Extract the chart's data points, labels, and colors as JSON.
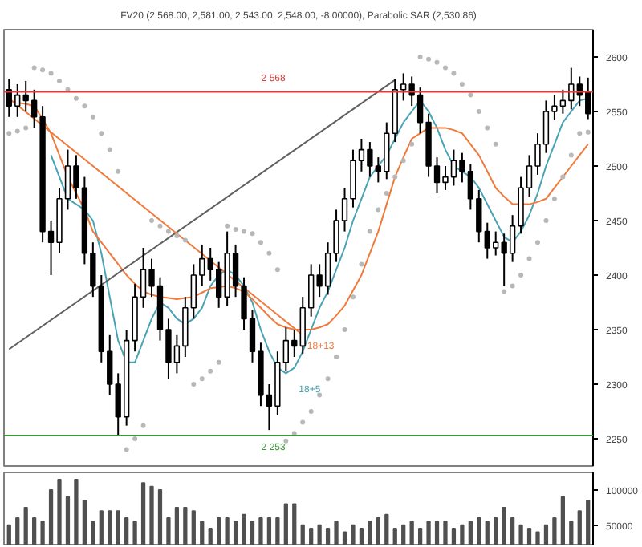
{
  "chart_data": [
    {
      "type": "candlestick",
      "title": "FV20 (2,568.00, 2,581.00, 2,543.00, 2,548.00, -8.00000), Parabolic SAR (2,530.86)",
      "categories": [
        null,
        null,
        null,
        null,
        null,
        null,
        null,
        null,
        null,
        null,
        null,
        null,
        null,
        null,
        null,
        null,
        null,
        null,
        null,
        null,
        null,
        null,
        null,
        null,
        null,
        null,
        null,
        null,
        null,
        null,
        null,
        null,
        null,
        null,
        null,
        null,
        null,
        null,
        null,
        null,
        null,
        null,
        null,
        null,
        null,
        null,
        null,
        null,
        null,
        null,
        null,
        null,
        null,
        null,
        null,
        null,
        null,
        null,
        null,
        null,
        null,
        null,
        null,
        null,
        null,
        null,
        null,
        null,
        null,
        null
      ],
      "ohlc": [
        [
          2570,
          2580,
          2545,
          2555
        ],
        [
          2555,
          2575,
          2545,
          2565
        ],
        [
          2565,
          2578,
          2550,
          2560
        ],
        [
          2560,
          2570,
          2535,
          2545
        ],
        [
          2545,
          2555,
          2430,
          2440
        ],
        [
          2440,
          2450,
          2400,
          2430
        ],
        [
          2430,
          2480,
          2420,
          2470
        ],
        [
          2470,
          2515,
          2460,
          2500
        ],
        [
          2500,
          2510,
          2470,
          2480
        ],
        [
          2480,
          2490,
          2410,
          2420
        ],
        [
          2420,
          2430,
          2380,
          2390
        ],
        [
          2390,
          2400,
          2320,
          2330
        ],
        [
          2330,
          2345,
          2290,
          2300
        ],
        [
          2300,
          2310,
          2253,
          2270
        ],
        [
          2270,
          2350,
          2262,
          2340
        ],
        [
          2340,
          2392,
          2330,
          2380
        ],
        [
          2380,
          2425,
          2370,
          2405
        ],
        [
          2405,
          2415,
          2380,
          2390
        ],
        [
          2390,
          2398,
          2340,
          2350
        ],
        [
          2350,
          2360,
          2305,
          2320
        ],
        [
          2320,
          2345,
          2310,
          2335
        ],
        [
          2335,
          2380,
          2325,
          2370
        ],
        [
          2370,
          2410,
          2360,
          2400
        ],
        [
          2400,
          2428,
          2390,
          2415
        ],
        [
          2415,
          2425,
          2395,
          2405
        ],
        [
          2405,
          2412,
          2370,
          2380
        ],
        [
          2380,
          2440,
          2372,
          2420
        ],
        [
          2420,
          2428,
          2380,
          2390
        ],
        [
          2390,
          2398,
          2350,
          2360
        ],
        [
          2360,
          2368,
          2320,
          2330
        ],
        [
          2330,
          2338,
          2280,
          2290
        ],
        [
          2290,
          2300,
          2258,
          2280
        ],
        [
          2280,
          2330,
          2272,
          2320
        ],
        [
          2320,
          2352,
          2312,
          2340
        ],
        [
          2340,
          2350,
          2325,
          2335
        ],
        [
          2335,
          2380,
          2328,
          2370
        ],
        [
          2370,
          2410,
          2362,
          2400
        ],
        [
          2400,
          2410,
          2380,
          2390
        ],
        [
          2390,
          2430,
          2382,
          2420
        ],
        [
          2420,
          2460,
          2412,
          2450
        ],
        [
          2450,
          2480,
          2440,
          2470
        ],
        [
          2470,
          2515,
          2462,
          2505
        ],
        [
          2505,
          2525,
          2495,
          2515
        ],
        [
          2515,
          2522,
          2490,
          2500
        ],
        [
          2500,
          2508,
          2485,
          2495
        ],
        [
          2495,
          2540,
          2488,
          2530
        ],
        [
          2530,
          2580,
          2522,
          2570
        ],
        [
          2570,
          2585,
          2560,
          2575
        ],
        [
          2575,
          2582,
          2555,
          2565
        ],
        [
          2565,
          2572,
          2530,
          2540
        ],
        [
          2540,
          2548,
          2490,
          2500
        ],
        [
          2500,
          2508,
          2475,
          2485
        ],
        [
          2485,
          2500,
          2478,
          2490
        ],
        [
          2490,
          2515,
          2482,
          2505
        ],
        [
          2505,
          2512,
          2485,
          2495
        ],
        [
          2495,
          2502,
          2460,
          2470
        ],
        [
          2470,
          2478,
          2430,
          2440
        ],
        [
          2440,
          2448,
          2415,
          2425
        ],
        [
          2425,
          2440,
          2418,
          2430
        ],
        [
          2430,
          2438,
          2390,
          2420
        ],
        [
          2420,
          2455,
          2412,
          2445
        ],
        [
          2445,
          2490,
          2438,
          2480
        ],
        [
          2480,
          2510,
          2472,
          2500
        ],
        [
          2500,
          2530,
          2492,
          2520
        ],
        [
          2520,
          2560,
          2512,
          2550
        ],
        [
          2550,
          2565,
          2542,
          2555
        ],
        [
          2555,
          2570,
          2548,
          2560
        ],
        [
          2560,
          2590,
          2552,
          2575
        ],
        [
          2575,
          2582,
          2555,
          2565
        ],
        [
          2568,
          2581,
          2543,
          2548
        ]
      ],
      "series": [
        {
          "type": "line",
          "name": "18+5",
          "color": "#4aa3b5",
          "values": [
            null,
            null,
            null,
            null,
            null,
            2510,
            2490,
            2470,
            2465,
            2460,
            2450,
            2420,
            2380,
            2340,
            2320,
            2320,
            2340,
            2360,
            2375,
            2370,
            2360,
            2355,
            2360,
            2370,
            2390,
            2400,
            2405,
            2400,
            2390,
            2375,
            2350,
            2330,
            2315,
            2310,
            2315,
            2330,
            2350,
            2370,
            2385,
            2405,
            2425,
            2450,
            2470,
            2490,
            2500,
            2510,
            2525,
            2540,
            2550,
            2560,
            2550,
            2535,
            2515,
            2500,
            2495,
            2490,
            2480,
            2465,
            2450,
            2435,
            2430,
            2440,
            2455,
            2475,
            2500,
            2520,
            2540,
            2550,
            2560,
            2562
          ]
        },
        {
          "type": "line",
          "name": "18+13",
          "color": "#f07a3c",
          "values": [
            2560,
            2558,
            2557,
            2555,
            2543,
            2530,
            2510,
            2490,
            2475,
            2460,
            2440,
            2430,
            2420,
            2410,
            2400,
            2392,
            2385,
            2382,
            2380,
            2379,
            2378,
            2379,
            2380,
            2384,
            2388,
            2389,
            2390,
            2388,
            2385,
            2378,
            2370,
            2362,
            2355,
            2352,
            2350,
            2350,
            2350,
            2352,
            2355,
            2363,
            2372,
            2386,
            2400,
            2420,
            2440,
            2465,
            2490,
            2508,
            2525,
            2530,
            2535,
            2535,
            2535,
            2533,
            2530,
            2520,
            2510,
            2495,
            2480,
            2472,
            2465,
            2465,
            2465,
            2467,
            2470,
            2480,
            2490,
            2500,
            2510,
            2520
          ]
        },
        {
          "type": "line",
          "color": "#606060",
          "values": [
            2332,
            null,
            null,
            null,
            null,
            null,
            null,
            null,
            null,
            null,
            null,
            null,
            null,
            null,
            null,
            null,
            null,
            null,
            null,
            null,
            null,
            null,
            null,
            null,
            null,
            null,
            null,
            null,
            null,
            null,
            null,
            null,
            null,
            null,
            null,
            null,
            null,
            null,
            null,
            null,
            null,
            null,
            null,
            null,
            null,
            null,
            2579,
            null,
            null,
            null,
            null,
            null,
            null,
            null,
            null,
            null,
            null,
            null,
            null,
            null,
            null,
            null,
            null,
            null,
            null,
            null,
            null,
            null,
            null,
            null
          ]
        },
        {
          "type": "line",
          "color": "#f07a3c",
          "values": [
            2562,
            null,
            null,
            null,
            null,
            null,
            null,
            null,
            null,
            null,
            null,
            null,
            null,
            null,
            null,
            null,
            null,
            null,
            null,
            null,
            null,
            null,
            null,
            null,
            null,
            null,
            null,
            null,
            null,
            null,
            null,
            null,
            null,
            null,
            null,
            2345,
            null,
            null,
            null,
            null,
            null,
            null,
            null,
            null,
            null,
            null,
            null,
            null,
            null,
            null,
            null,
            null,
            null,
            null,
            null,
            null,
            null,
            null,
            null,
            null,
            null,
            null,
            null,
            null,
            null,
            null,
            null,
            null,
            null,
            null
          ]
        },
        {
          "type": "scatter",
          "color": "#b8b8b8",
          "values": [
            2530,
            2532,
            2535,
            2590,
            2588,
            2585,
            2578,
            2570,
            2562,
            2555,
            2545,
            2530,
            2515,
            2495,
            2240,
            2250,
            2262,
            2450,
            2445,
            2440,
            2436,
            2432,
            2300,
            2305,
            2312,
            2320,
            2445,
            2442,
            2440,
            2438,
            2430,
            2420,
            2405,
            2248,
            2255,
            2265,
            2275,
            2290,
            2305,
            2325,
            2350,
            2380,
            2410,
            2440,
            2460,
            2475,
            2490,
            2505,
            2520,
            2600,
            2598,
            2595,
            2590,
            2585,
            2575,
            2565,
            2550,
            2535,
            2520,
            2385,
            2390,
            2400,
            2415,
            2430,
            2450,
            2470,
            2490,
            2510,
            2530,
            2531
          ]
        }
      ],
      "ylim": [
        2225,
        2625
      ],
      "yticks": [
        2250,
        2300,
        2350,
        2400,
        2450,
        2500,
        2550,
        2600
      ],
      "tick_labels": "y",
      "marker": "none",
      "ref_lines": [
        {
          "axis": "y",
          "value": 2568,
          "label": "2 568",
          "color": "#e03c3c"
        },
        {
          "axis": "y",
          "value": 2253,
          "label": "2 253",
          "color": "#3a9a3a"
        }
      ]
    },
    {
      "type": "bar",
      "categories": [
        null,
        null,
        null,
        null,
        null,
        null,
        null,
        null,
        null,
        null,
        null,
        null,
        null,
        null,
        null,
        null,
        null,
        null,
        null,
        null,
        null,
        null,
        null,
        null,
        null,
        null,
        null,
        null,
        null,
        null,
        null,
        null,
        null,
        null,
        null,
        null,
        null,
        null,
        null,
        null,
        null,
        null,
        null,
        null,
        null,
        null,
        null,
        null,
        null,
        null,
        null,
        null,
        null,
        null,
        null,
        null,
        null,
        null,
        null,
        null,
        null,
        null,
        null,
        null,
        null,
        null,
        null,
        null,
        null,
        null
      ],
      "color": "#505050",
      "values": [
        50000,
        60000,
        75000,
        60000,
        55000,
        100000,
        115000,
        90000,
        115000,
        85000,
        55000,
        70000,
        70000,
        70000,
        60000,
        55000,
        110000,
        105000,
        100000,
        60000,
        75000,
        75000,
        70000,
        55000,
        45000,
        60000,
        60000,
        55000,
        65000,
        55000,
        60000,
        60000,
        60000,
        80000,
        80000,
        50000,
        45000,
        50000,
        45000,
        55000,
        40000,
        50000,
        45000,
        55000,
        60000,
        65000,
        45000,
        50000,
        55000,
        45000,
        55000,
        55000,
        55000,
        45000,
        50000,
        55000,
        60000,
        55000,
        60000,
        75000,
        60000,
        50000,
        45000,
        40000,
        50000,
        60000,
        90000,
        55000,
        70000,
        85000
      ],
      "ylim": [
        22000,
        125000
      ],
      "yticks": [
        {
          "value": 50000,
          "label": "50000"
        },
        {
          "value": 100000,
          "label": "100000"
        }
      ],
      "tick_labels": "y"
    }
  ]
}
